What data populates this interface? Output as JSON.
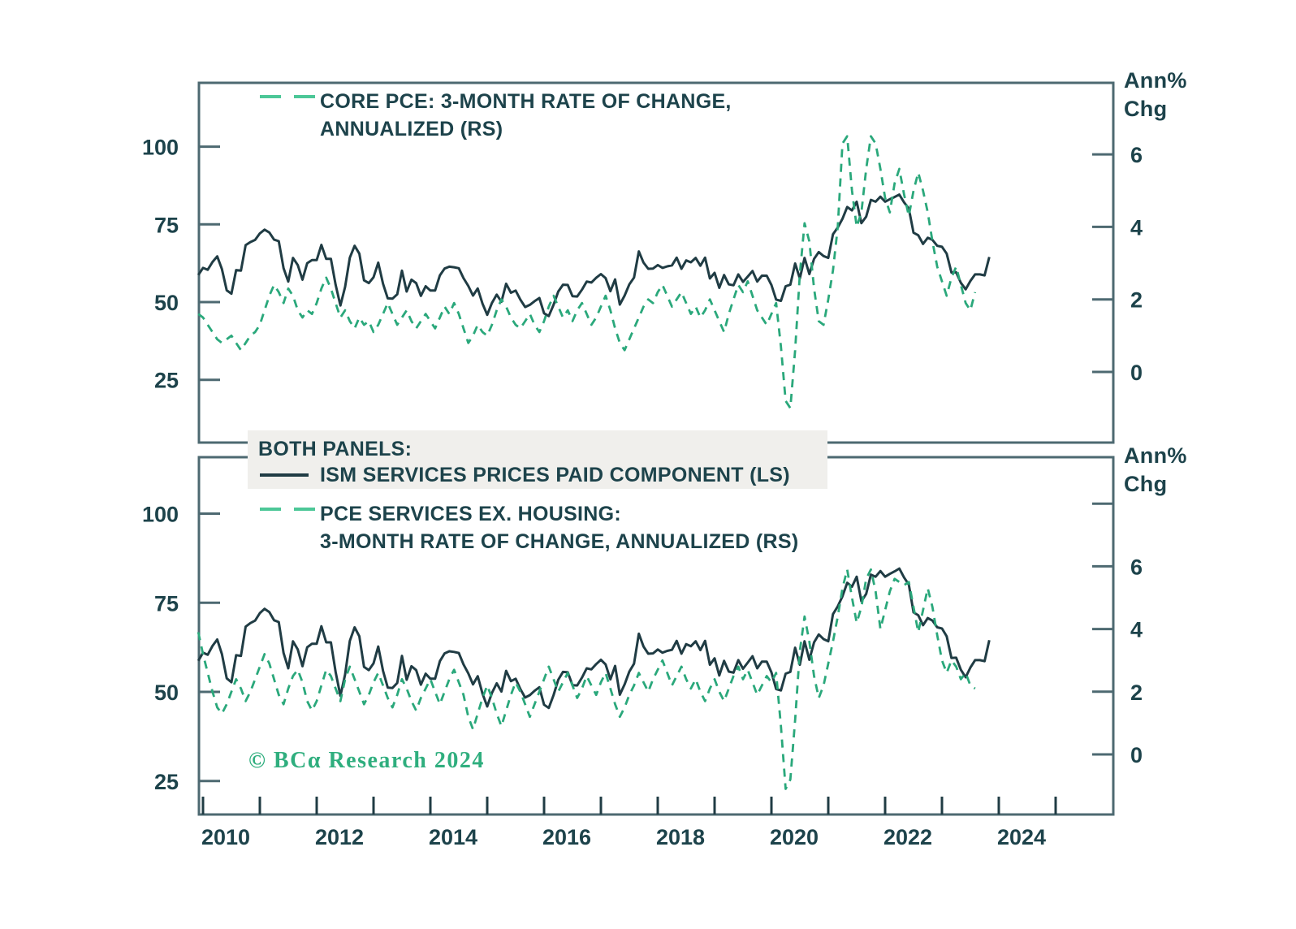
{
  "colors": {
    "line_dark": "#203c44",
    "line_green": "#2aa87b",
    "marker_green": "#4cc797",
    "axis": "#4d6971",
    "text": "#1d434b",
    "legend_bg": "#f0efec",
    "copyright_green": "#2fae7e",
    "background": "#ffffff"
  },
  "top_legend": {
    "line1": "CORE PCE: 3-MONTH RATE OF CHANGE,",
    "line2": "ANNUALIZED (RS)"
  },
  "mid_legend": {
    "title": "BOTH PANELS:",
    "ism_label": "ISM SERVICES PRICES PAID COMPONENT (LS)"
  },
  "pce_legend": {
    "line1": "PCE SERVICES EX. HOUSING:",
    "line2": "3-MONTH RATE OF CHANGE, ANNUALIZED (RS)"
  },
  "right_axis_title": {
    "line1": "Ann%",
    "line2": "Chg"
  },
  "copyright": "© BCα Research 2024",
  "chart_data": {
    "type": "line",
    "title": "",
    "x_axis": {
      "start": 2009.917,
      "end": 2025.6,
      "tick_years": [
        2010,
        2011,
        2012,
        2013,
        2014,
        2015,
        2016,
        2017,
        2018,
        2019,
        2020,
        2021,
        2022,
        2023,
        2024,
        2025
      ],
      "label_years": [
        2010,
        2012,
        2014,
        2016,
        2018,
        2020,
        2022,
        2024
      ]
    },
    "panels": [
      {
        "name": "top",
        "left_ticks": [
          100,
          75,
          50,
          25
        ],
        "right_ticks": [
          {
            "v": 6,
            "label": "6"
          },
          {
            "v": 4,
            "label": "4"
          },
          {
            "v": 2,
            "label": "2"
          },
          {
            "v": 0,
            "label": "0"
          }
        ],
        "right_axis_title": "Ann% Chg",
        "series": [
          "ism",
          "core_pce"
        ]
      },
      {
        "name": "bottom",
        "left_ticks": [
          100,
          75,
          50,
          25
        ],
        "right_ticks": [
          {
            "v": 8,
            "label": ""
          },
          {
            "v": 6,
            "label": "6"
          },
          {
            "v": 4,
            "label": "4"
          },
          {
            "v": 2,
            "label": "2"
          },
          {
            "v": 0,
            "label": "0"
          }
        ],
        "right_axis_title": "Ann% Chg",
        "series": [
          "ism",
          "pce_services"
        ]
      }
    ],
    "series": {
      "ism": {
        "label": "ISM SERVICES PRICES PAID COMPONENT (LS)",
        "axis": "left",
        "style": "solid",
        "x_start": 2009.9167,
        "x_step_years": 0.0833333,
        "values": [
          58.7,
          61,
          60.4,
          62.9,
          64.7,
          60.6,
          53.8,
          52.7,
          60.3,
          60.1,
          68.3,
          69.3,
          70,
          72.1,
          73.3,
          72.4,
          70.1,
          69.6,
          60.9,
          56.6,
          64.2,
          61.9,
          57.2,
          62.5,
          63.5,
          63.5,
          68.4,
          63.9,
          63.9,
          55.6,
          48.9,
          54.9,
          64.3,
          68.1,
          65.6,
          57,
          56.1,
          58,
          62.7,
          55.9,
          51.2,
          51.1,
          52.5,
          60.1,
          53.4,
          57.2,
          56.1,
          52,
          55.1,
          53.7,
          53.7,
          58.6,
          60.8,
          61.4,
          61.2,
          60.9,
          57.7,
          55.2,
          52.1,
          54.4,
          49.5,
          45.9,
          49.7,
          52.4,
          50.1,
          55.9,
          53,
          53.7,
          50.8,
          48.4,
          49.1,
          50.3,
          51.3,
          46.4,
          45.5,
          49.1,
          53.4,
          55.6,
          55.5,
          51.9,
          51.8,
          54,
          56.6,
          56.3,
          57.8,
          59,
          57.7,
          53.5,
          57.3,
          49.2,
          52.1,
          55.7,
          57.9,
          66.3,
          62.7,
          60.7,
          60.8,
          61.9,
          61,
          61.5,
          61.8,
          64.3,
          60.7,
          63.4,
          62.8,
          64.2,
          61.7,
          64.3,
          57.6,
          59.4,
          54.6,
          58.7,
          55.7,
          55.4,
          58.9,
          56.5,
          58.2,
          60,
          56.6,
          58.5,
          58.5,
          55.5,
          50.8,
          50.4,
          55.1,
          55.6,
          62.4,
          57.6,
          64.2,
          59,
          63.9,
          66.1,
          64.8,
          64.2,
          71.8,
          74,
          76.8,
          80.6,
          79.5,
          82.3,
          75.4,
          77.5,
          82.9,
          82.3,
          83.9,
          82.3,
          83.1,
          83.8,
          84.6,
          82.1,
          80.1,
          72.3,
          71.5,
          68.7,
          70.7,
          70,
          68.1,
          67.8,
          65.6,
          59.5,
          59.6,
          56.2,
          54.1,
          56.8,
          58.9,
          58.9,
          58.6,
          64.5
        ]
      },
      "core_pce": {
        "label": "CORE PCE: 3-MONTH RATE OF CHANGE, ANNUALIZED (RS)",
        "axis": "right",
        "style": "dashed",
        "x_start": 2009.9167,
        "x_step_years": 0.0833333,
        "values": [
          1.6,
          1.5,
          1.3,
          1.1,
          0.9,
          0.8,
          0.9,
          1.0,
          0.8,
          0.6,
          0.8,
          1.0,
          1.1,
          1.3,
          1.7,
          2.1,
          2.4,
          2.2,
          1.9,
          2.3,
          2.1,
          1.7,
          1.5,
          1.7,
          1.6,
          1.9,
          2.3,
          2.6,
          2.3,
          1.9,
          1.5,
          1.7,
          1.4,
          1.2,
          1.5,
          1.3,
          1.4,
          1.1,
          1.3,
          1.6,
          1.9,
          1.6,
          1.3,
          1.5,
          1.7,
          1.4,
          1.2,
          1.4,
          1.6,
          1.4,
          1.2,
          1.5,
          1.8,
          1.6,
          1.9,
          1.6,
          1.2,
          0.8,
          1.0,
          1.3,
          1.1,
          1.0,
          1.3,
          1.7,
          2.0,
          1.8,
          1.5,
          1.3,
          1.2,
          1.4,
          1.6,
          1.3,
          1.1,
          1.4,
          1.8,
          2.1,
          1.8,
          1.5,
          1.7,
          1.4,
          1.7,
          1.9,
          1.6,
          1.3,
          1.5,
          1.8,
          2.1,
          1.7,
          1.2,
          0.8,
          0.6,
          0.9,
          1.2,
          1.5,
          1.8,
          2.0,
          1.9,
          2.2,
          2.4,
          2.1,
          1.8,
          2.0,
          2.2,
          1.9,
          1.6,
          1.8,
          1.5,
          1.7,
          2.0,
          1.7,
          1.4,
          1.1,
          1.6,
          2.0,
          2.4,
          2.2,
          2.5,
          2.1,
          1.7,
          1.5,
          1.3,
          1.6,
          1.9,
          0.7,
          -0.8,
          -1.0,
          0.6,
          2.7,
          4.1,
          3.6,
          2.3,
          1.4,
          1.3,
          2.0,
          2.8,
          4.0,
          6.3,
          6.5,
          5.0,
          4.0,
          4.4,
          5.6,
          6.5,
          6.3,
          5.6,
          4.8,
          4.4,
          5.2,
          5.6,
          4.9,
          4.3,
          5.0,
          5.5,
          5.0,
          4.4,
          3.6,
          2.9,
          2.5,
          2.1,
          2.6,
          2.9,
          2.4,
          1.9,
          1.7,
          2.2
        ]
      },
      "pce_services": {
        "label": "PCE SERVICES EX. HOUSING: 3-MONTH RATE OF CHANGE, ANNUALIZED (RS)",
        "axis": "right",
        "style": "dashed",
        "x_start": 2009.9167,
        "x_step_years": 0.0833333,
        "values": [
          3.9,
          3.2,
          2.6,
          2.0,
          1.5,
          1.3,
          1.6,
          2.0,
          2.4,
          2.1,
          1.7,
          2.0,
          2.4,
          2.8,
          3.2,
          2.9,
          2.4,
          1.9,
          1.6,
          2.1,
          2.5,
          2.7,
          2.3,
          1.7,
          1.4,
          1.7,
          2.2,
          2.7,
          2.5,
          2.1,
          1.7,
          2.4,
          2.8,
          2.4,
          2.0,
          1.6,
          1.9,
          2.3,
          2.6,
          2.2,
          1.8,
          1.5,
          1.9,
          2.4,
          2.1,
          1.7,
          1.4,
          1.8,
          2.1,
          2.4,
          2.0,
          1.6,
          2.0,
          2.4,
          2.7,
          2.3,
          1.9,
          1.2,
          0.8,
          1.3,
          1.8,
          2.2,
          1.8,
          1.3,
          0.9,
          1.4,
          1.9,
          2.3,
          2.0,
          1.6,
          1.2,
          1.6,
          2.0,
          2.4,
          2.8,
          2.4,
          2.0,
          2.3,
          2.6,
          2.2,
          1.8,
          2.1,
          2.5,
          2.2,
          1.9,
          2.3,
          2.6,
          2.1,
          1.6,
          1.2,
          1.5,
          1.9,
          2.2,
          2.6,
          2.3,
          2.0,
          2.4,
          2.7,
          3.0,
          2.6,
          2.2,
          2.5,
          2.8,
          2.4,
          2.1,
          2.4,
          2.0,
          1.7,
          2.1,
          2.4,
          2.0,
          1.7,
          2.1,
          2.5,
          2.8,
          2.4,
          2.7,
          2.3,
          1.9,
          2.2,
          2.5,
          2.3,
          2.6,
          0.9,
          -1.1,
          -0.8,
          1.1,
          3.3,
          4.4,
          3.6,
          2.5,
          1.8,
          2.2,
          2.9,
          3.6,
          4.4,
          5.3,
          5.9,
          5.0,
          4.2,
          4.7,
          5.6,
          5.9,
          5.2,
          4.0,
          4.6,
          5.2,
          5.6,
          5.5,
          5.4,
          5.5,
          4.7,
          3.9,
          4.6,
          5.3,
          4.7,
          3.8,
          3.0,
          2.6,
          3.0,
          2.8,
          2.4,
          2.6,
          2.2,
          2.1
        ]
      }
    }
  }
}
